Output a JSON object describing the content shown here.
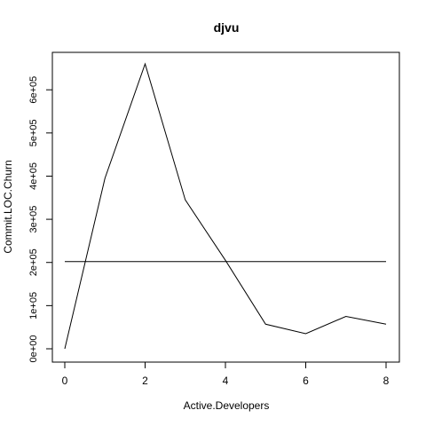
{
  "chart_data": {
    "type": "line",
    "title": "djvu",
    "xlabel": "Active.Developers",
    "ylabel": "Commit.LOC.Churn",
    "xlim": [
      0,
      8
    ],
    "ylim": [
      0,
      660000
    ],
    "x_ticks": [
      0,
      2,
      4,
      6,
      8
    ],
    "x_tick_labels": [
      "0",
      "2",
      "4",
      "6",
      "8"
    ],
    "y_ticks": [
      0,
      100000,
      200000,
      300000,
      400000,
      500000,
      600000
    ],
    "y_tick_labels": [
      "0e+00",
      "1e+05",
      "2e+05",
      "3e+05",
      "4e+05",
      "5e+05",
      "6e+05"
    ],
    "grid": false,
    "series": [
      {
        "x": [
          0,
          1,
          2,
          3,
          4,
          5,
          6,
          7,
          8
        ],
        "y": [
          0,
          395000,
          660000,
          345000,
          205000,
          57000,
          35000,
          75000,
          57000
        ],
        "color": "#000000"
      }
    ],
    "reference_line": {
      "y": 202000,
      "x_from": 0,
      "x_to": 8,
      "color": "#000000"
    }
  }
}
